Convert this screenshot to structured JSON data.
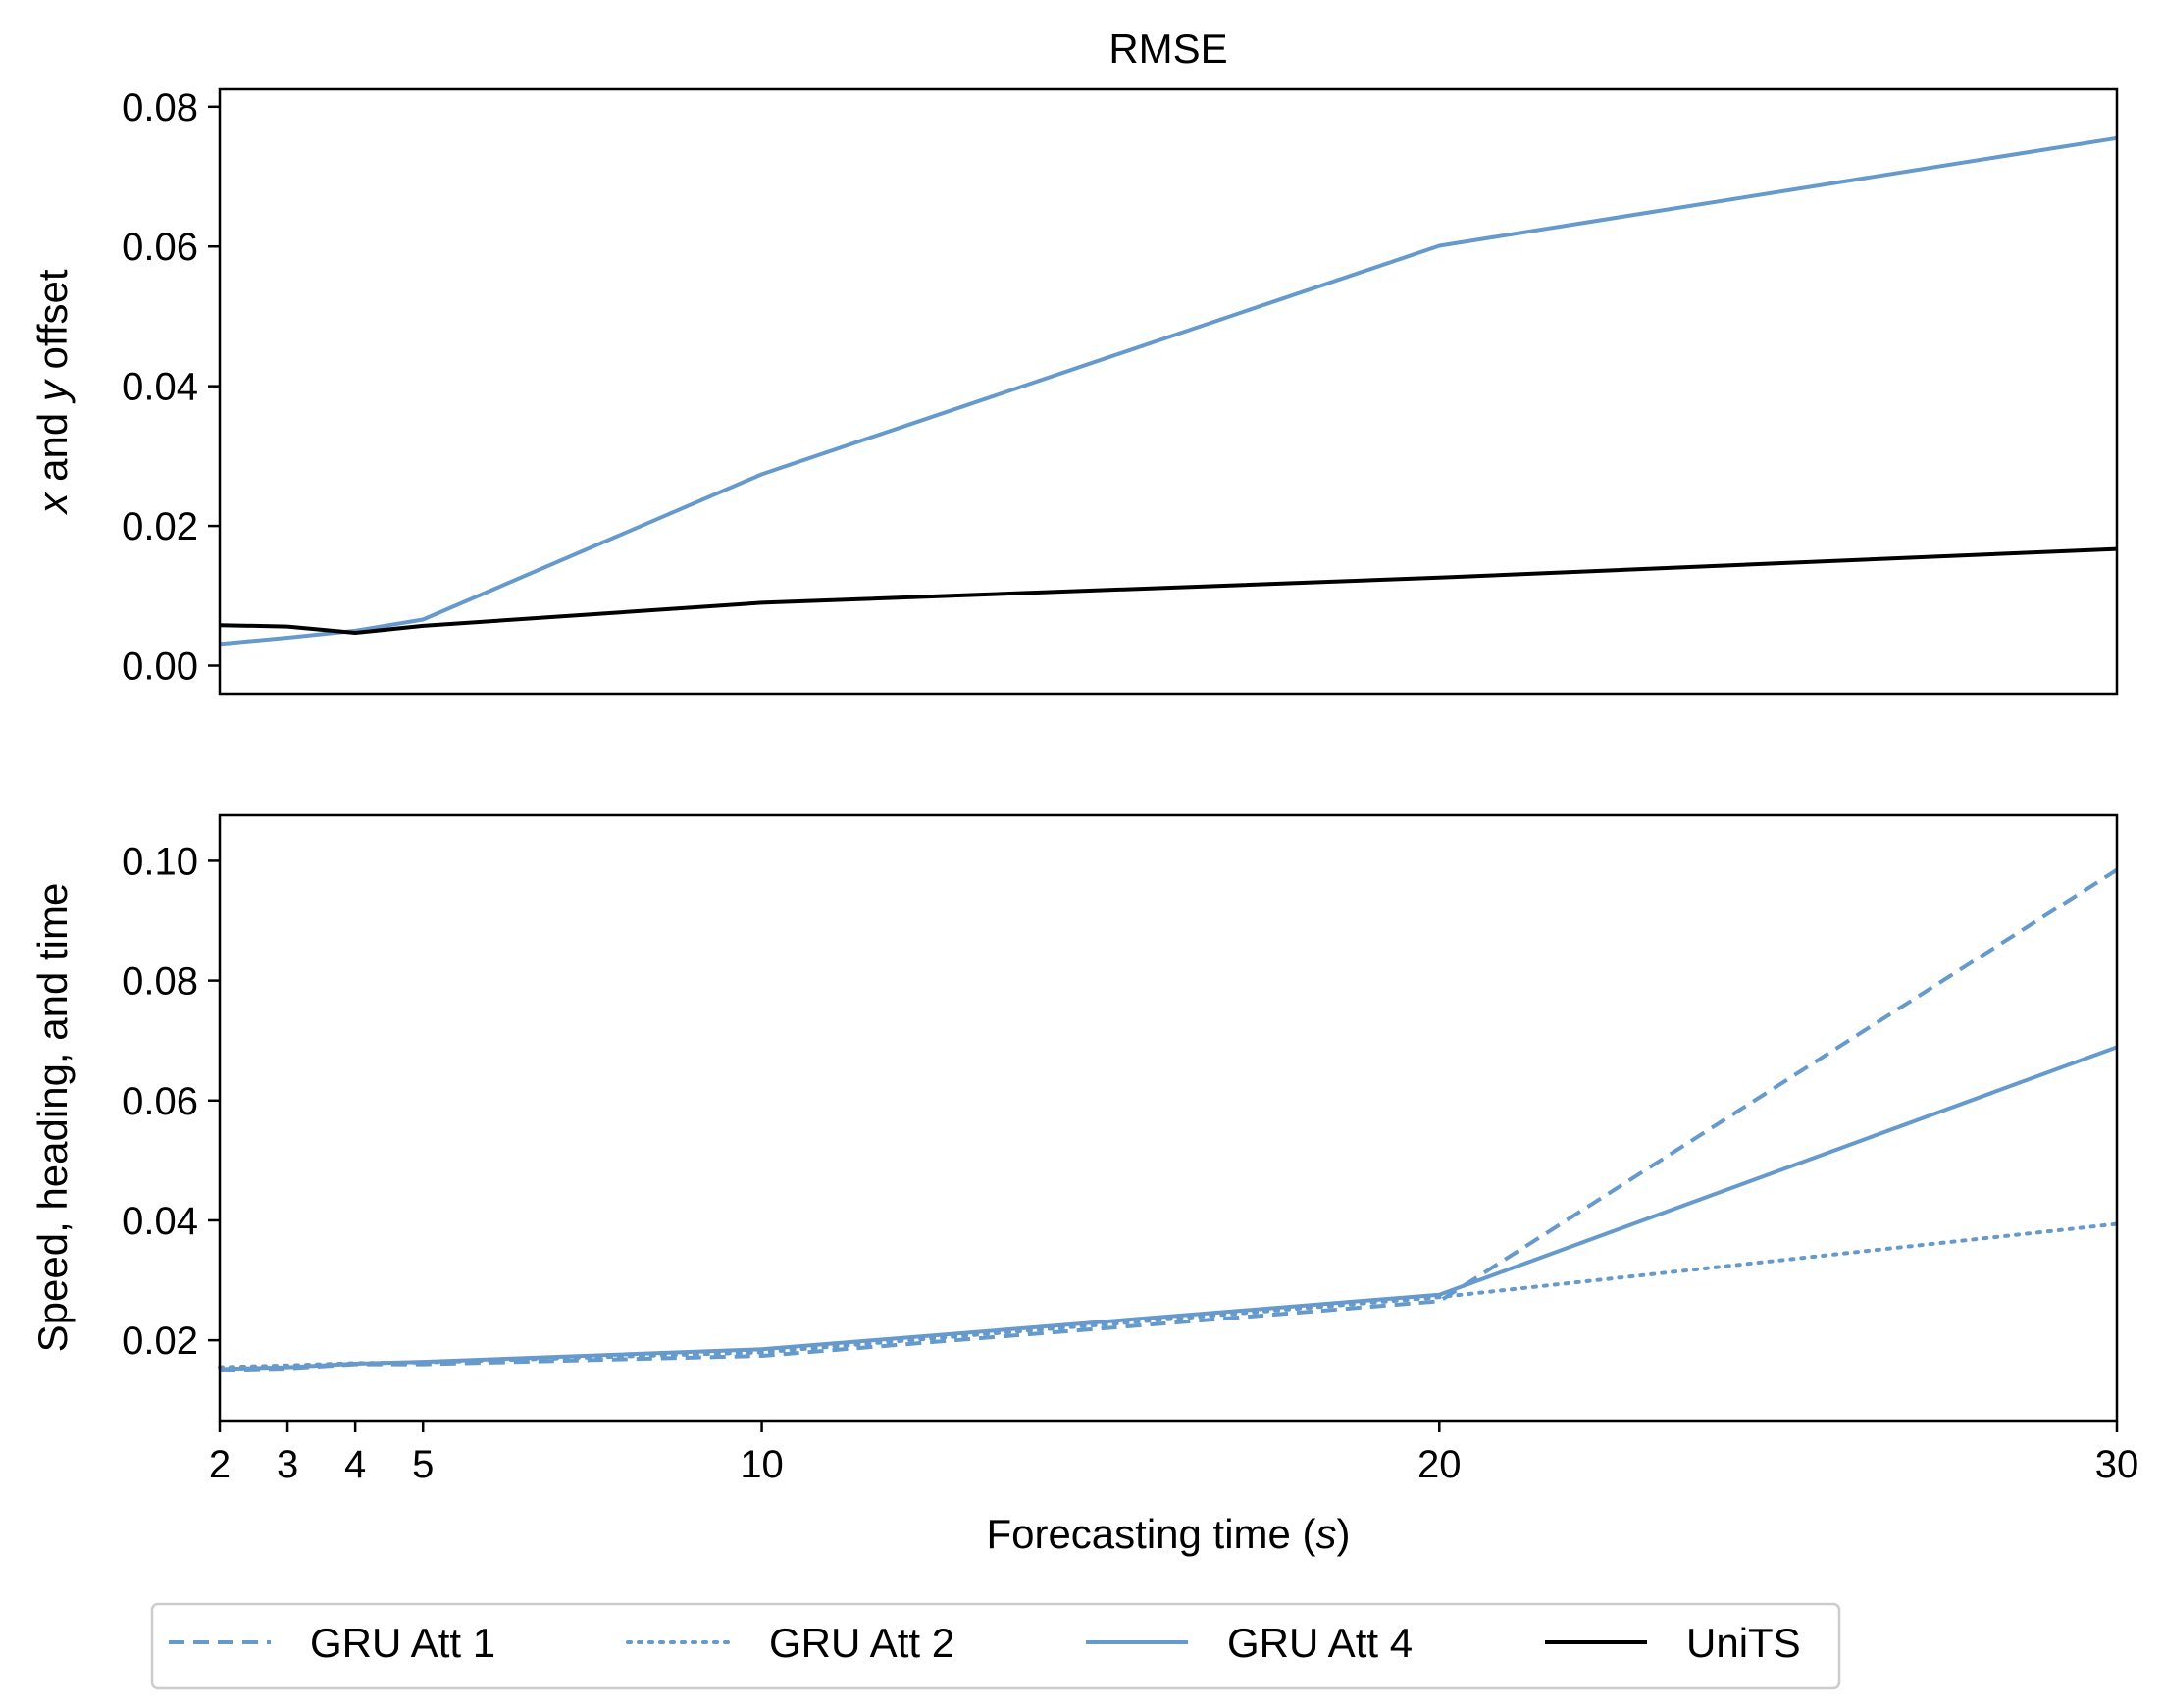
{
  "chart_data": {
    "type": "line",
    "title": "RMSE",
    "xlabel": {
      "pre": "Forecasting time (",
      "ital": "s",
      "post": ")"
    },
    "x": [
      2,
      3,
      4,
      5,
      10,
      20,
      30
    ],
    "xticks": [
      "2",
      "3",
      "4",
      "5",
      "10",
      "20",
      "30"
    ],
    "xlim": [
      2,
      30
    ],
    "colors": {
      "gru": "#6699cc",
      "units": "#000000"
    },
    "legend": {
      "placement": "bottom-center",
      "entries": [
        {
          "label": "GRU Att 1",
          "style": "dashed",
          "color": "#6699cc"
        },
        {
          "label": "GRU Att 2",
          "style": "dotted",
          "color": "#6699cc"
        },
        {
          "label": "GRU Att 4",
          "style": "solid",
          "color": "#6699cc"
        },
        {
          "label": "UniTS",
          "style": "solid",
          "color": "#000000"
        }
      ]
    },
    "panels": [
      {
        "ylabel": {
          "i1": "x",
          "t1": " and ",
          "i2": "y",
          "t2": " offset"
        },
        "ylim": [
          -0.004,
          0.0825
        ],
        "yticks": [
          0.0,
          0.02,
          0.04,
          0.06,
          0.08
        ],
        "ytick_labels": [
          "0.00",
          "0.02",
          "0.04",
          "0.06",
          "0.08"
        ],
        "series": [
          {
            "legend_index": 2,
            "values": [
              0.0031,
              0.004,
              0.005,
              0.0066,
              0.0274,
              0.0601,
              0.0755
            ]
          },
          {
            "legend_index": 3,
            "values": [
              0.0058,
              0.0056,
              0.0047,
              0.0057,
              0.009,
              0.0126,
              0.0167
            ]
          }
        ]
      },
      {
        "ylabel": "Speed, heading, and time",
        "ylim": [
          0.0066,
          0.1076
        ],
        "yticks": [
          0.02,
          0.04,
          0.06,
          0.08,
          0.1
        ],
        "ytick_labels": [
          "0.02",
          "0.04",
          "0.06",
          "0.08",
          "0.10"
        ],
        "series": [
          {
            "legend_index": 0,
            "values": [
              0.015,
              0.0153,
              0.016,
              0.016,
              0.0174,
              0.0265,
              0.0985
            ]
          },
          {
            "legend_index": 1,
            "values": [
              0.0155,
              0.0158,
              0.0162,
              0.0163,
              0.018,
              0.0272,
              0.0394
            ]
          },
          {
            "legend_index": 2,
            "values": [
              0.0152,
              0.0155,
              0.0161,
              0.0164,
              0.0185,
              0.0276,
              0.0689
            ]
          }
        ]
      }
    ]
  }
}
